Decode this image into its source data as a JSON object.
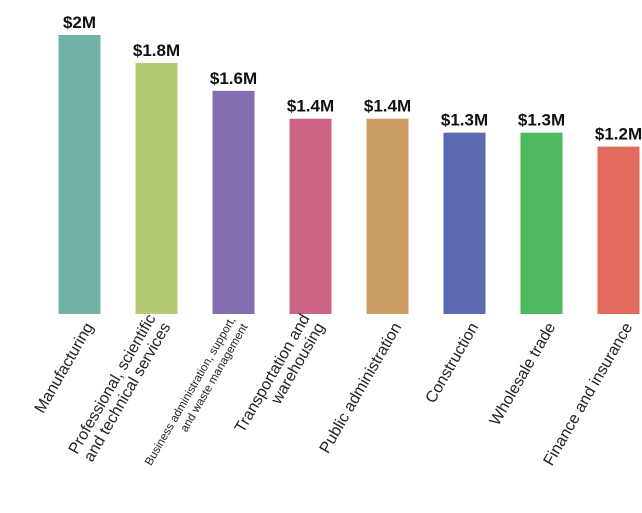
{
  "chart_data": {
    "type": "bar",
    "title": "",
    "xlabel": "",
    "ylabel": "",
    "ylim": [
      0,
      2
    ],
    "grid": false,
    "legend": "none",
    "categories": [
      [
        "Manufacturing"
      ],
      [
        "Professional, scientific",
        "and technical services"
      ],
      [
        "Business administration, support,",
        "and waste management"
      ],
      [
        "Transportation and",
        "warehousing"
      ],
      [
        "Public administration"
      ],
      [
        "Construction"
      ],
      [
        "Wholesale trade"
      ],
      [
        "Finance and insurance"
      ]
    ],
    "values": [
      2.0,
      1.8,
      1.6,
      1.4,
      1.4,
      1.3,
      1.3,
      1.2
    ],
    "data_labels": [
      "$2M",
      "$1.8M",
      "$1.6M",
      "$1.4M",
      "$1.4M",
      "$1.3M",
      "$1.3M",
      "$1.2M"
    ],
    "colors": [
      "#72b2a5",
      "#b3cb72",
      "#846eb2",
      "#cb6483",
      "#cc9e64",
      "#5b69b1",
      "#4fb95e",
      "#e36b5e"
    ]
  }
}
